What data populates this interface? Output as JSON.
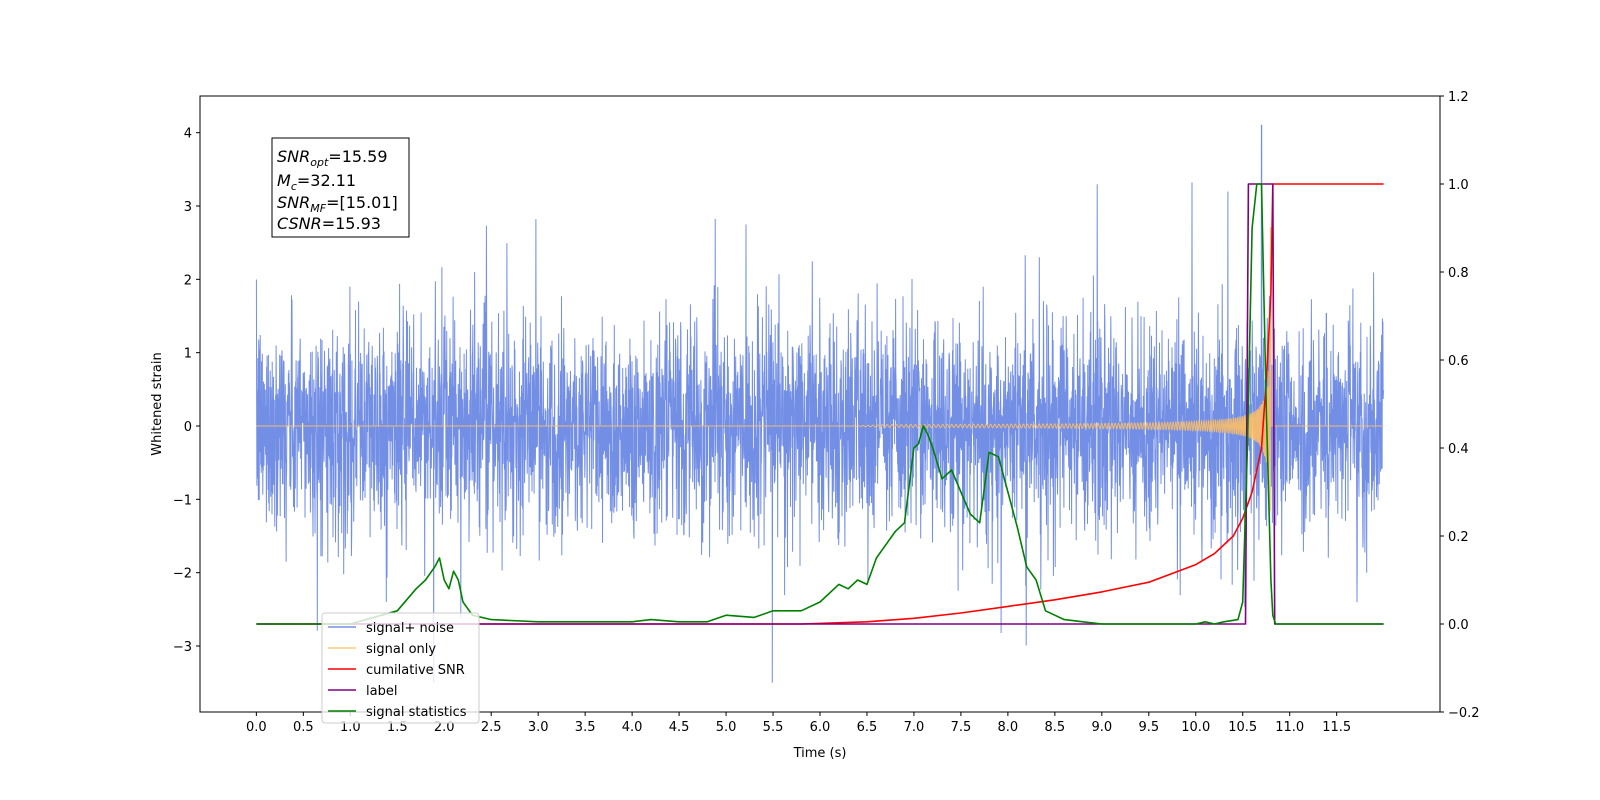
{
  "chart_data": {
    "type": "line",
    "xlabel": "Time (s)",
    "ylabel_left": "Whitened strain",
    "xlim": [
      -0.6,
      12.6
    ],
    "ylim_left": [
      -3.9,
      4.5
    ],
    "ylim_right": [
      -0.2,
      1.2
    ],
    "xticks": [
      "0.0",
      "0.5",
      "1.0",
      "1.5",
      "2.0",
      "2.5",
      "3.0",
      "3.5",
      "4.0",
      "4.5",
      "5.0",
      "5.5",
      "6.0",
      "6.5",
      "7.0",
      "7.5",
      "8.0",
      "8.5",
      "9.0",
      "9.5",
      "10.0",
      "10.5",
      "11.0",
      "11.5"
    ],
    "yticks_left": [
      "4",
      "3",
      "2",
      "1",
      "0",
      "−1",
      "−2",
      "−3"
    ],
    "yticks_right": [
      "1.2",
      "1.0",
      "0.8",
      "0.6",
      "0.4",
      "0.2",
      "0.0",
      "−0.2"
    ],
    "grid": false,
    "legend_position": "lower-left",
    "annotation": {
      "lines": [
        {
          "base": "SNR",
          "sub": "opt",
          "value": "=15.59"
        },
        {
          "base": "M",
          "sub": "c",
          "value": "=32.11"
        },
        {
          "base": "SNR",
          "sub": "MF",
          "value": "=[15.01]"
        },
        {
          "base": "CSNR",
          "sub": "",
          "value": "=15.93"
        }
      ]
    },
    "series": [
      {
        "name": "signal+ noise",
        "axis": "left",
        "color": "#5a7be0",
        "description": "whitened noise, approx. ±1.7 with spikes up to 4.1 near t=10.7",
        "x_range": [
          0.0,
          12.0
        ],
        "peak": {
          "x": 10.7,
          "y": 4.1
        }
      },
      {
        "name": "signal only",
        "axis": "left",
        "color": "#ffbf66",
        "description": "chirp from ~t=6.5 growing to ~±3.2 at t=10.8",
        "x_range": [
          0.0,
          12.0
        ],
        "merger_time": 10.8
      },
      {
        "name": "cumilative SNR",
        "axis": "right",
        "color": "#ff0000",
        "x": [
          0,
          5.8,
          6.5,
          7.0,
          7.5,
          8.0,
          8.5,
          9.0,
          9.5,
          10.0,
          10.2,
          10.4,
          10.5,
          10.6,
          10.7,
          10.75,
          10.8,
          10.82,
          12.0
        ],
        "y": [
          0,
          0,
          0.005,
          0.013,
          0.025,
          0.04,
          0.055,
          0.073,
          0.095,
          0.135,
          0.16,
          0.2,
          0.24,
          0.3,
          0.4,
          0.55,
          0.75,
          1.0,
          1.0
        ]
      },
      {
        "name": "label",
        "axis": "right",
        "color": "#800080",
        "x": [
          0,
          10.53,
          10.56,
          10.82,
          10.84,
          12.0
        ],
        "y": [
          0,
          0,
          1.0,
          1.0,
          0,
          0
        ]
      },
      {
        "name": "signal statistics",
        "axis": "right",
        "color": "#008000",
        "x": [
          0,
          1.0,
          1.5,
          1.7,
          1.8,
          1.9,
          1.95,
          2.0,
          2.05,
          2.1,
          2.15,
          2.2,
          2.3,
          2.5,
          3.0,
          3.5,
          4.0,
          4.2,
          4.5,
          4.8,
          5.0,
          5.3,
          5.5,
          5.8,
          6.0,
          6.2,
          6.3,
          6.4,
          6.5,
          6.6,
          6.7,
          6.8,
          6.9,
          7.0,
          7.05,
          7.1,
          7.15,
          7.2,
          7.3,
          7.4,
          7.5,
          7.6,
          7.7,
          7.8,
          7.9,
          8.0,
          8.1,
          8.2,
          8.3,
          8.4,
          8.5,
          8.6,
          8.8,
          9.0,
          9.5,
          10.0,
          10.1,
          10.2,
          10.3,
          10.45,
          10.5,
          10.55,
          10.6,
          10.65,
          10.7,
          10.75,
          10.8,
          10.82,
          10.85,
          11.0,
          12.0
        ],
        "y": [
          0,
          0,
          0.03,
          0.08,
          0.1,
          0.13,
          0.15,
          0.1,
          0.08,
          0.12,
          0.1,
          0.05,
          0.02,
          0.01,
          0.005,
          0.005,
          0.005,
          0.01,
          0.005,
          0.005,
          0.02,
          0.015,
          0.03,
          0.03,
          0.05,
          0.09,
          0.08,
          0.1,
          0.09,
          0.15,
          0.18,
          0.21,
          0.23,
          0.4,
          0.41,
          0.45,
          0.43,
          0.4,
          0.33,
          0.35,
          0.3,
          0.25,
          0.23,
          0.39,
          0.38,
          0.3,
          0.22,
          0.13,
          0.1,
          0.03,
          0.02,
          0.01,
          0.005,
          0,
          0,
          0,
          0.005,
          0,
          0.005,
          0.01,
          0.05,
          0.4,
          0.9,
          1.0,
          1.0,
          0.5,
          0.1,
          0.02,
          0,
          0,
          0
        ]
      }
    ]
  }
}
